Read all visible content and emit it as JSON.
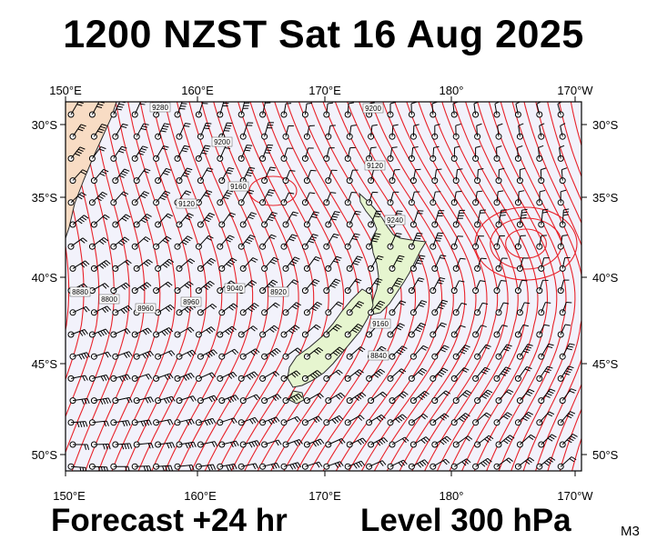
{
  "header": {
    "title": "1200 NZST Sat 16 Aug 2025"
  },
  "footer": {
    "forecast": "Forecast +24 hr",
    "level": "Level 300 hPa",
    "model_code": "M3"
  },
  "map": {
    "projection_extent": {
      "lon_west": 150,
      "lon_east": 190,
      "lat_north": -28,
      "lat_south": -51
    },
    "lon_ticks": [
      "150°E",
      "160°E",
      "170°E",
      "180°",
      "170°W"
    ],
    "lat_ticks": [
      "30°S",
      "35°S",
      "40°S",
      "45°S",
      "50°S"
    ],
    "contour_labels": [
      "9280",
      "9200",
      "9120",
      "9040",
      "9160",
      "9200",
      "9240",
      "8880",
      "8960",
      "8800",
      "8920",
      "8960",
      "8840",
      "9160",
      "9120"
    ],
    "colors": {
      "contour": "#e8222a",
      "background": "#f2f2fb",
      "land": "#e6f5cf",
      "coast": "#2a2a2a",
      "wind_barb": "#000000"
    },
    "layers": [
      "geopotential height contours",
      "wind barbs",
      "coastline"
    ]
  }
}
